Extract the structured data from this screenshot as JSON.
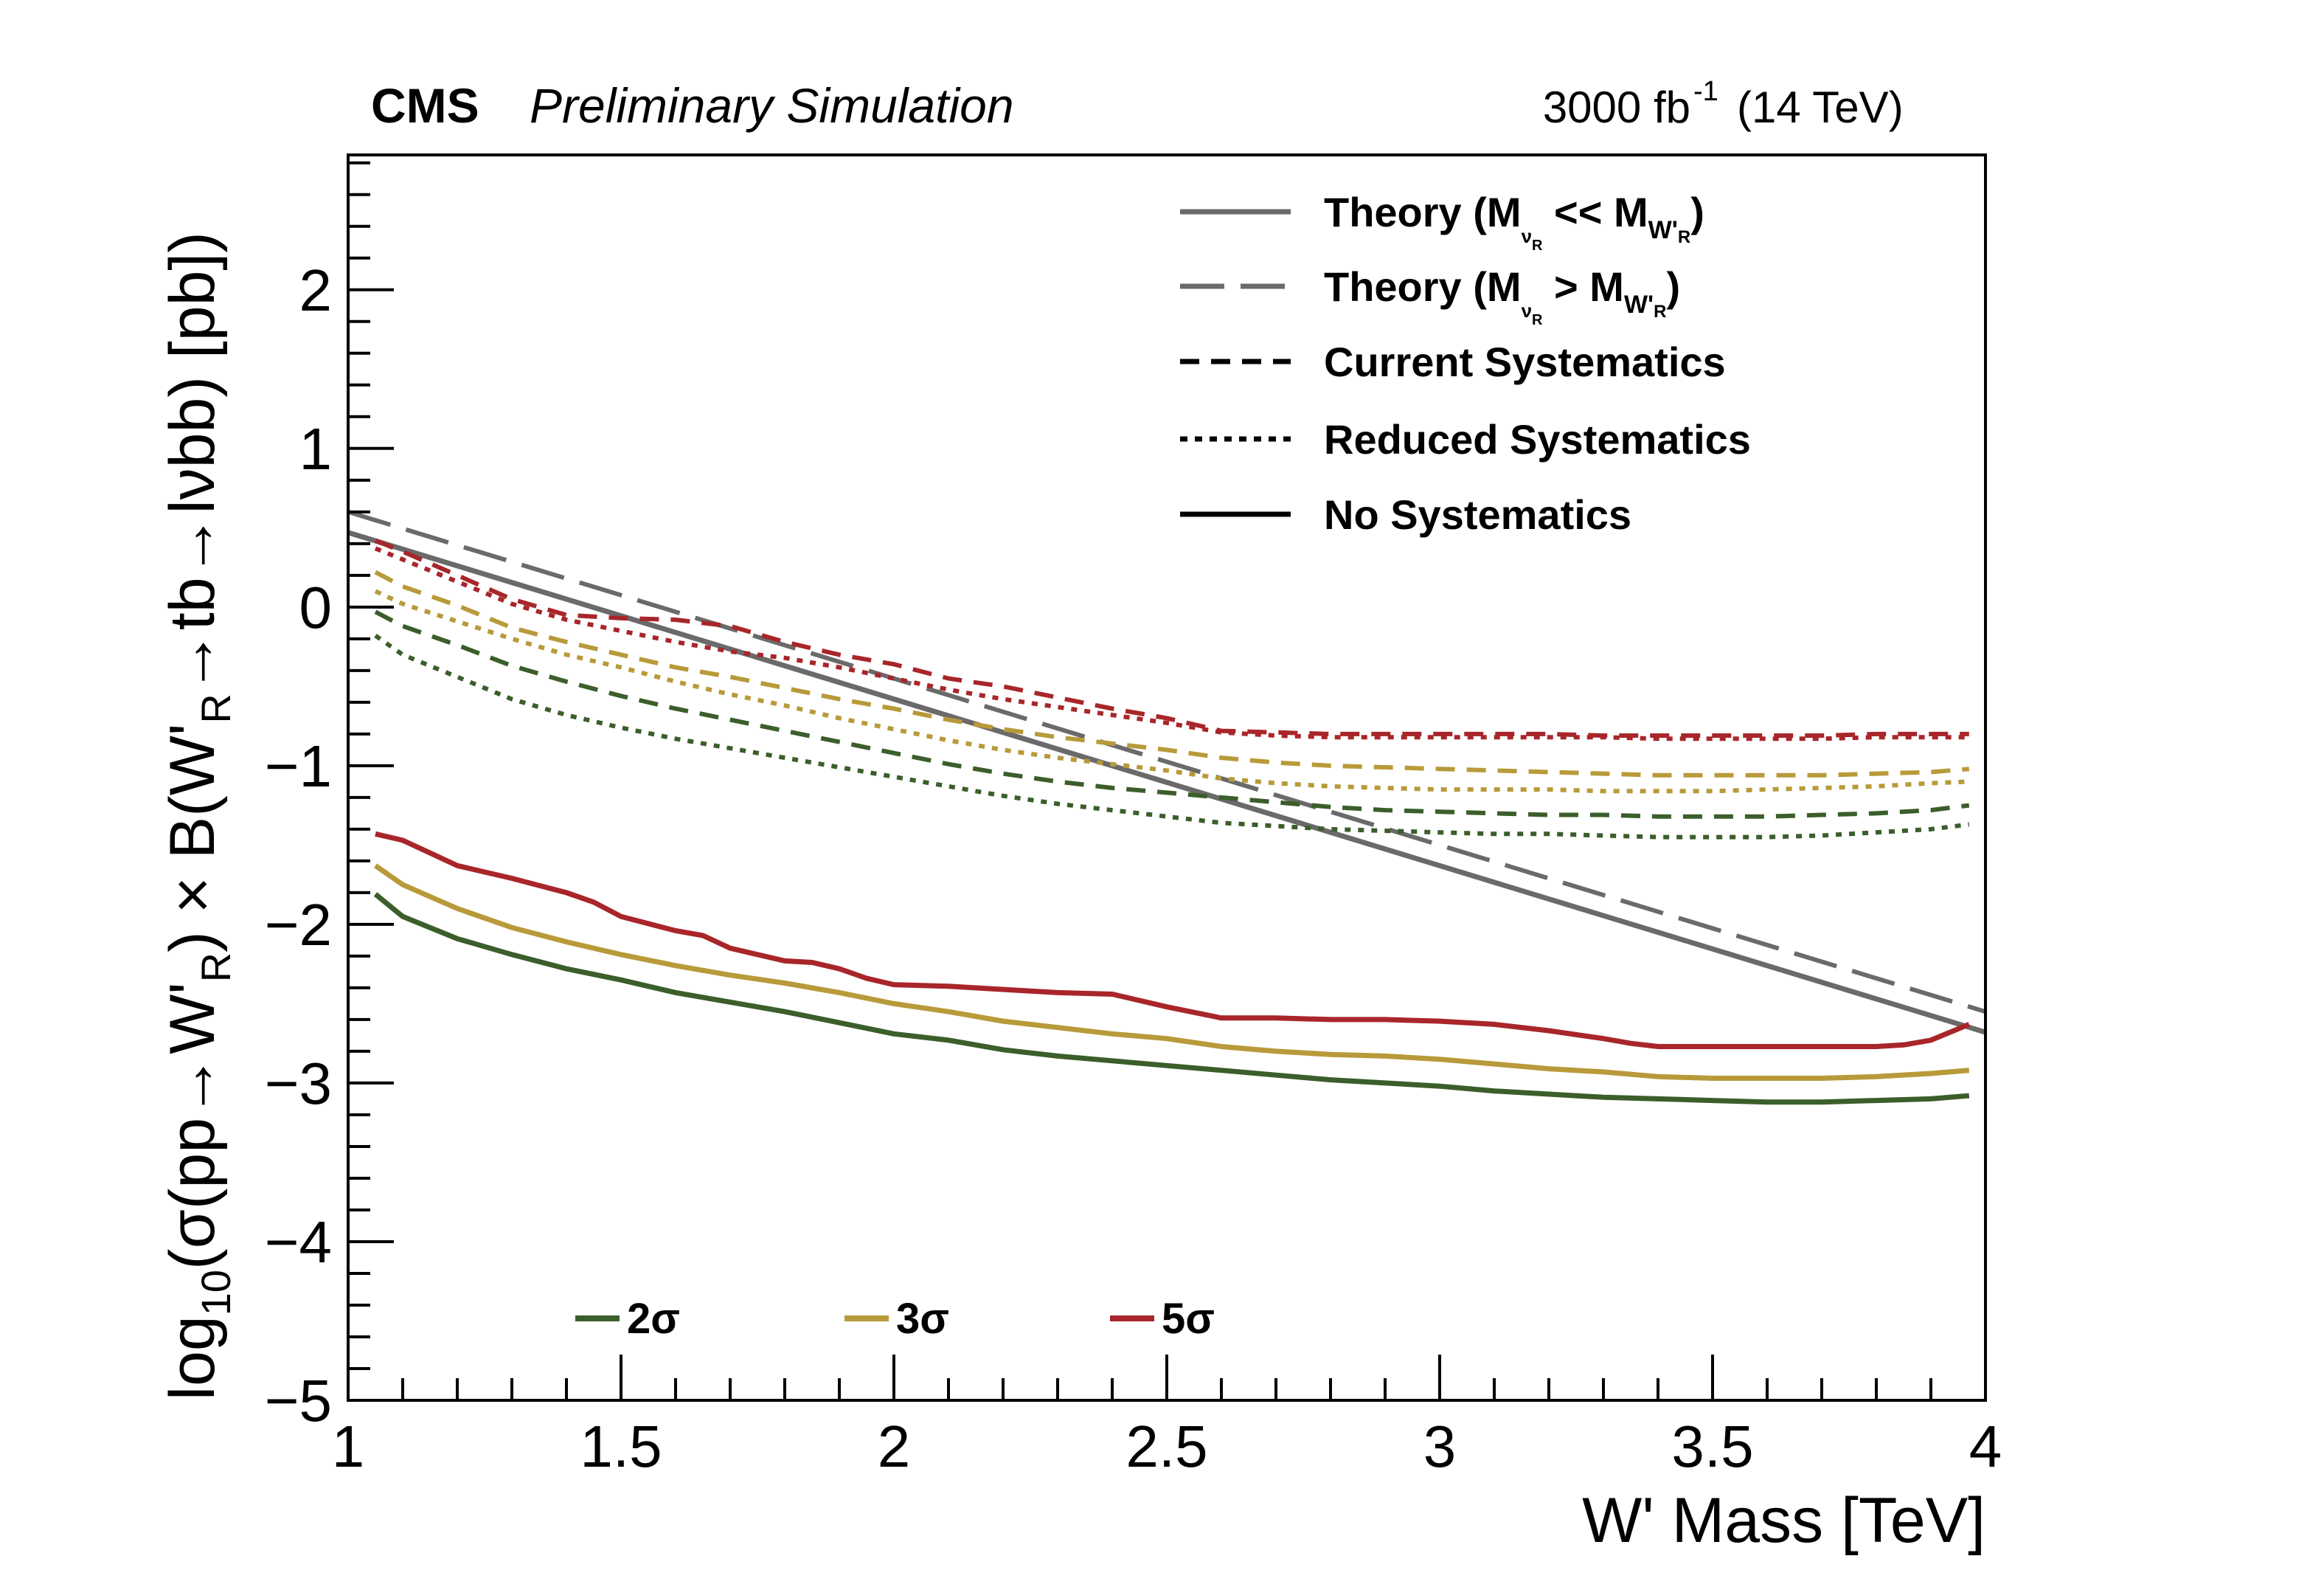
{
  "chart_data": {
    "type": "line",
    "title": "CMS",
    "subtitle": "Preliminary Simulation",
    "lumi_label": "3000 fb",
    "lumi_exp": "-1",
    "energy_label": "(14 TeV)",
    "xlabel": "W' Mass [TeV]",
    "ylabel": {
      "p1": "log",
      "p1_sub": "10",
      "p2": "(σ(pp→W'",
      "p2_sub": "R",
      "p3": ") × B(W'",
      "p3_sub": "R",
      "p4": "→tb→lνbb) [pb])"
    },
    "xlim": [
      1,
      4
    ],
    "ylim": [
      -5,
      2.85
    ],
    "grid": false,
    "x_ticks": [
      {
        "value": 1,
        "label": "1"
      },
      {
        "value": 1.5,
        "label": "1.5"
      },
      {
        "value": 2,
        "label": "2"
      },
      {
        "value": 2.5,
        "label": "2.5"
      },
      {
        "value": 3,
        "label": "3"
      },
      {
        "value": 3.5,
        "label": "3.5"
      },
      {
        "value": 4,
        "label": "4"
      }
    ],
    "y_ticks": [
      {
        "value": 2,
        "label": "2"
      },
      {
        "value": 1,
        "label": "1"
      },
      {
        "value": 0,
        "label": "0"
      },
      {
        "value": -1,
        "label": "−1"
      },
      {
        "value": -2,
        "label": "−2"
      },
      {
        "value": -3,
        "label": "−3"
      },
      {
        "value": -4,
        "label": "−4"
      },
      {
        "value": -5,
        "label": "−5"
      }
    ],
    "colors": {
      "2sigma": "#3b5e2b",
      "3sigma": "#b89a3a",
      "5sigma": "#a8262a",
      "theory": "#6a6a6a",
      "axis": "#000000"
    },
    "legend_styles": {
      "position": "top-right",
      "entries": [
        {
          "key": "theory_light",
          "style": "solid",
          "color": "#6a6a6a",
          "text": "Theory (M",
          "sub1": "ν",
          "sub1b": "R",
          "mid": " << M",
          "sub2": "W'",
          "sub2b": "R",
          "end": ")"
        },
        {
          "key": "theory_heavy",
          "style": "longdash",
          "color": "#6a6a6a",
          "text": "Theory (M",
          "sub1": "ν",
          "sub1b": "R",
          "mid": " > M",
          "sub2": "W'",
          "sub2b": "R",
          "end": ")"
        },
        {
          "key": "current",
          "style": "dashed",
          "color": "#000000",
          "text": "Current Systematics"
        },
        {
          "key": "reduced",
          "style": "dotted",
          "color": "#000000",
          "text": "Reduced Systematics"
        },
        {
          "key": "nosys",
          "style": "solid",
          "color": "#000000",
          "text": "No Systematics"
        }
      ]
    },
    "legend_sigma": {
      "position": "bottom-left",
      "entries": [
        {
          "key": "2sigma",
          "label": "2σ",
          "color": "#3b5e2b"
        },
        {
          "key": "3sigma",
          "label": "3σ",
          "color": "#b89a3a"
        },
        {
          "key": "5sigma",
          "label": "5σ",
          "color": "#a8262a"
        }
      ]
    },
    "series": [
      {
        "name": "Theory (M_νR << M_W'R)",
        "style": "solid",
        "color": "#6a6a6a",
        "x": [
          1.0,
          4.0
        ],
        "y": [
          0.47,
          -2.68
        ]
      },
      {
        "name": "Theory (M_νR > M_W'R)",
        "style": "longdash",
        "color": "#6a6a6a",
        "x": [
          1.0,
          4.0
        ],
        "y": [
          0.6,
          -2.55
        ]
      },
      {
        "name": "5σ Current Systematics",
        "style": "dashed",
        "color": "#a8262a",
        "x": [
          1.05,
          1.1,
          1.2,
          1.3,
          1.4,
          1.5,
          1.6,
          1.7,
          1.8,
          1.9,
          2.0,
          2.1,
          2.2,
          2.3,
          2.4,
          2.5,
          2.6,
          2.7,
          2.8,
          2.9,
          3.0,
          3.1,
          3.2,
          3.3,
          3.4,
          3.5,
          3.6,
          3.7,
          3.8,
          3.9,
          3.97
        ],
        "y": [
          0.42,
          0.35,
          0.2,
          0.05,
          -0.05,
          -0.07,
          -0.08,
          -0.12,
          -0.22,
          -0.3,
          -0.36,
          -0.45,
          -0.5,
          -0.57,
          -0.64,
          -0.7,
          -0.78,
          -0.79,
          -0.8,
          -0.8,
          -0.8,
          -0.8,
          -0.8,
          -0.81,
          -0.81,
          -0.81,
          -0.81,
          -0.81,
          -0.8,
          -0.8,
          -0.8
        ]
      },
      {
        "name": "5σ Reduced Systematics",
        "style": "dotted",
        "color": "#a8262a",
        "x": [
          1.05,
          1.1,
          1.2,
          1.3,
          1.4,
          1.5,
          1.6,
          1.7,
          1.8,
          1.9,
          2.0,
          2.1,
          2.2,
          2.3,
          2.4,
          2.5,
          2.6,
          2.7,
          2.8,
          2.9,
          3.0,
          3.1,
          3.2,
          3.3,
          3.4,
          3.5,
          3.6,
          3.7,
          3.8,
          3.9,
          3.97
        ],
        "y": [
          0.37,
          0.3,
          0.16,
          0.02,
          -0.08,
          -0.15,
          -0.22,
          -0.28,
          -0.32,
          -0.38,
          -0.45,
          -0.52,
          -0.58,
          -0.63,
          -0.68,
          -0.73,
          -0.79,
          -0.81,
          -0.82,
          -0.82,
          -0.82,
          -0.82,
          -0.82,
          -0.82,
          -0.83,
          -0.83,
          -0.83,
          -0.83,
          -0.82,
          -0.82,
          -0.82
        ]
      },
      {
        "name": "5σ No Systematics",
        "style": "solid",
        "color": "#a8262a",
        "x": [
          1.05,
          1.1,
          1.15,
          1.2,
          1.3,
          1.4,
          1.45,
          1.5,
          1.6,
          1.65,
          1.7,
          1.8,
          1.85,
          1.9,
          1.95,
          2.0,
          2.1,
          2.2,
          2.3,
          2.4,
          2.5,
          2.6,
          2.7,
          2.8,
          2.9,
          3.0,
          3.1,
          3.2,
          3.3,
          3.35,
          3.4,
          3.5,
          3.6,
          3.7,
          3.8,
          3.85,
          3.9,
          3.97
        ],
        "y": [
          -1.43,
          -1.47,
          -1.55,
          -1.63,
          -1.71,
          -1.8,
          -1.86,
          -1.95,
          -2.04,
          -2.07,
          -2.15,
          -2.23,
          -2.24,
          -2.28,
          -2.34,
          -2.38,
          -2.39,
          -2.41,
          -2.43,
          -2.44,
          -2.52,
          -2.59,
          -2.59,
          -2.6,
          -2.6,
          -2.61,
          -2.63,
          -2.67,
          -2.72,
          -2.75,
          -2.77,
          -2.77,
          -2.77,
          -2.77,
          -2.77,
          -2.76,
          -2.73,
          -2.63
        ]
      },
      {
        "name": "3σ Current Systematics",
        "style": "dashed",
        "color": "#b89a3a",
        "x": [
          1.05,
          1.1,
          1.2,
          1.3,
          1.4,
          1.5,
          1.6,
          1.7,
          1.8,
          1.9,
          2.0,
          2.1,
          2.2,
          2.3,
          2.4,
          2.5,
          2.6,
          2.7,
          2.8,
          2.9,
          3.0,
          3.1,
          3.2,
          3.3,
          3.4,
          3.5,
          3.6,
          3.7,
          3.8,
          3.9,
          3.97
        ],
        "y": [
          0.22,
          0.13,
          0.01,
          -0.13,
          -0.22,
          -0.3,
          -0.38,
          -0.44,
          -0.51,
          -0.58,
          -0.64,
          -0.71,
          -0.77,
          -0.82,
          -0.86,
          -0.9,
          -0.95,
          -0.98,
          -1.0,
          -1.01,
          -1.02,
          -1.03,
          -1.04,
          -1.05,
          -1.06,
          -1.06,
          -1.06,
          -1.06,
          -1.05,
          -1.04,
          -1.02
        ]
      },
      {
        "name": "3σ Reduced Systematics",
        "style": "dotted",
        "color": "#b89a3a",
        "x": [
          1.05,
          1.1,
          1.2,
          1.3,
          1.4,
          1.5,
          1.6,
          1.7,
          1.8,
          1.9,
          2.0,
          2.1,
          2.2,
          2.3,
          2.4,
          2.5,
          2.6,
          2.7,
          2.8,
          2.9,
          3.0,
          3.1,
          3.2,
          3.3,
          3.4,
          3.5,
          3.6,
          3.7,
          3.8,
          3.9,
          3.97
        ],
        "y": [
          0.1,
          0.02,
          -0.09,
          -0.2,
          -0.3,
          -0.38,
          -0.47,
          -0.55,
          -0.62,
          -0.7,
          -0.77,
          -0.84,
          -0.9,
          -0.95,
          -0.99,
          -1.03,
          -1.08,
          -1.11,
          -1.13,
          -1.14,
          -1.15,
          -1.15,
          -1.15,
          -1.16,
          -1.16,
          -1.16,
          -1.15,
          -1.14,
          -1.13,
          -1.11,
          -1.1
        ]
      },
      {
        "name": "3σ No Systematics",
        "style": "solid",
        "color": "#b89a3a",
        "x": [
          1.05,
          1.1,
          1.2,
          1.3,
          1.4,
          1.5,
          1.6,
          1.7,
          1.8,
          1.9,
          2.0,
          2.1,
          2.2,
          2.3,
          2.4,
          2.5,
          2.6,
          2.7,
          2.8,
          2.9,
          3.0,
          3.1,
          3.2,
          3.3,
          3.4,
          3.5,
          3.6,
          3.7,
          3.8,
          3.9,
          3.97
        ],
        "y": [
          -1.63,
          -1.75,
          -1.9,
          -2.02,
          -2.11,
          -2.19,
          -2.26,
          -2.32,
          -2.37,
          -2.43,
          -2.5,
          -2.55,
          -2.61,
          -2.65,
          -2.69,
          -2.72,
          -2.77,
          -2.8,
          -2.82,
          -2.83,
          -2.85,
          -2.88,
          -2.91,
          -2.93,
          -2.96,
          -2.97,
          -2.97,
          -2.97,
          -2.96,
          -2.94,
          -2.92
        ]
      },
      {
        "name": "2σ Current Systematics",
        "style": "dashed",
        "color": "#3b5e2b",
        "x": [
          1.05,
          1.1,
          1.2,
          1.3,
          1.4,
          1.5,
          1.6,
          1.7,
          1.8,
          1.9,
          2.0,
          2.1,
          2.2,
          2.3,
          2.4,
          2.5,
          2.6,
          2.7,
          2.8,
          2.9,
          3.0,
          3.1,
          3.2,
          3.3,
          3.4,
          3.5,
          3.6,
          3.7,
          3.8,
          3.9,
          3.97
        ],
        "y": [
          -0.03,
          -0.12,
          -0.24,
          -0.37,
          -0.47,
          -0.56,
          -0.64,
          -0.71,
          -0.78,
          -0.85,
          -0.92,
          -0.99,
          -1.05,
          -1.1,
          -1.14,
          -1.17,
          -1.2,
          -1.23,
          -1.26,
          -1.28,
          -1.29,
          -1.3,
          -1.31,
          -1.31,
          -1.32,
          -1.32,
          -1.32,
          -1.31,
          -1.3,
          -1.28,
          -1.25
        ]
      },
      {
        "name": "2σ Reduced Systematics",
        "style": "dotted",
        "color": "#3b5e2b",
        "x": [
          1.05,
          1.1,
          1.2,
          1.3,
          1.4,
          1.5,
          1.6,
          1.7,
          1.8,
          1.9,
          2.0,
          2.1,
          2.2,
          2.3,
          2.4,
          2.5,
          2.6,
          2.7,
          2.8,
          2.9,
          3.0,
          3.1,
          3.2,
          3.3,
          3.4,
          3.5,
          3.6,
          3.7,
          3.8,
          3.9,
          3.97
        ],
        "y": [
          -0.18,
          -0.3,
          -0.44,
          -0.58,
          -0.68,
          -0.76,
          -0.83,
          -0.89,
          -0.95,
          -1.01,
          -1.07,
          -1.13,
          -1.19,
          -1.24,
          -1.28,
          -1.32,
          -1.36,
          -1.38,
          -1.4,
          -1.41,
          -1.42,
          -1.43,
          -1.43,
          -1.44,
          -1.45,
          -1.45,
          -1.45,
          -1.44,
          -1.42,
          -1.4,
          -1.37
        ]
      },
      {
        "name": "2σ No Systematics",
        "style": "solid",
        "color": "#3b5e2b",
        "x": [
          1.05,
          1.1,
          1.2,
          1.3,
          1.4,
          1.5,
          1.6,
          1.7,
          1.8,
          1.9,
          2.0,
          2.1,
          2.2,
          2.3,
          2.4,
          2.5,
          2.6,
          2.7,
          2.8,
          2.9,
          3.0,
          3.1,
          3.2,
          3.3,
          3.4,
          3.5,
          3.6,
          3.7,
          3.8,
          3.9,
          3.97
        ],
        "y": [
          -1.81,
          -1.95,
          -2.09,
          -2.19,
          -2.28,
          -2.35,
          -2.43,
          -2.49,
          -2.55,
          -2.62,
          -2.69,
          -2.73,
          -2.79,
          -2.83,
          -2.86,
          -2.89,
          -2.92,
          -2.95,
          -2.98,
          -3.0,
          -3.02,
          -3.05,
          -3.07,
          -3.09,
          -3.1,
          -3.11,
          -3.12,
          -3.12,
          -3.11,
          -3.1,
          -3.08
        ]
      }
    ]
  }
}
